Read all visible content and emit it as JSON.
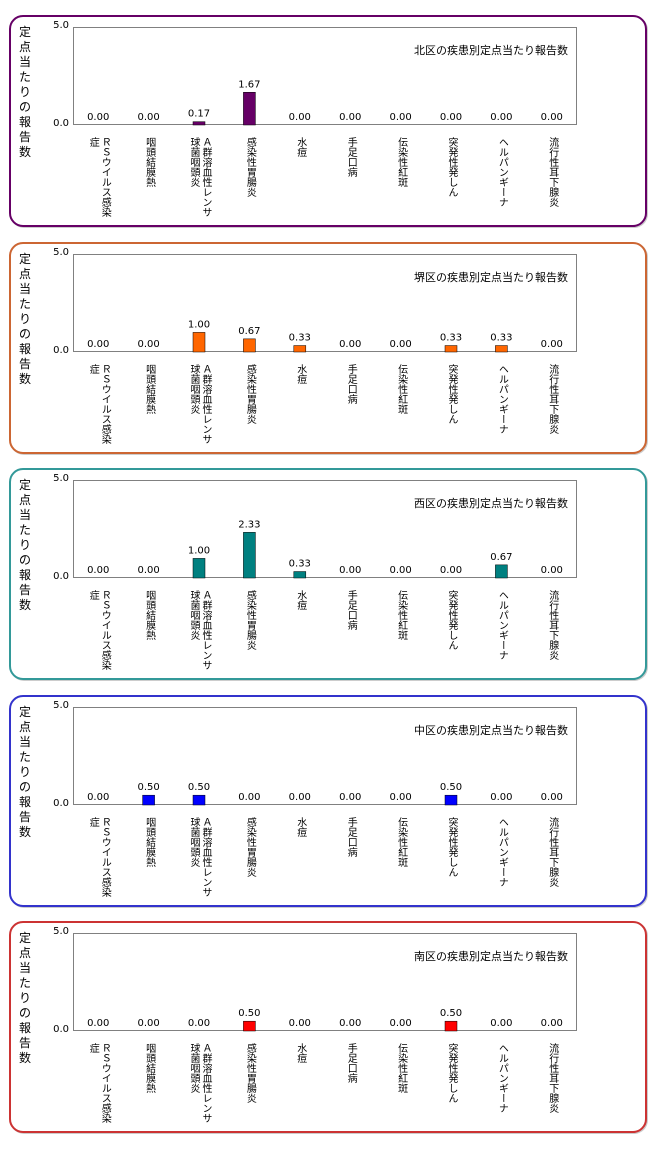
{
  "categories": [
    [
      "ＲＳウイルス感染",
      "症"
    ],
    [
      "咽頭結膜熱"
    ],
    [
      "Ａ群溶血性レンサ",
      "球菌咽頭炎"
    ],
    [
      "感染性胃腸炎"
    ],
    [
      "水痘"
    ],
    [
      "手足口病"
    ],
    [
      "伝染性紅斑"
    ],
    [
      "突発性発しん"
    ],
    [
      "ヘルパンギーナ"
    ],
    [
      "流行性耳下腺炎"
    ]
  ],
  "ylabel": "定点当たりの報告数",
  "yticks": [
    "5.0",
    "0.0"
  ],
  "chart_data": [
    {
      "type": "bar",
      "title": "北区の疾患別定点当たり報告数",
      "ylim": [
        0,
        5
      ],
      "color": "#660066",
      "values": [
        0,
        0,
        0.17,
        1.67,
        0,
        0,
        0,
        0,
        0,
        0
      ],
      "labels": [
        "0.00",
        "0.00",
        "0.17",
        "1.67",
        "0.00",
        "0.00",
        "0.00",
        "0.00",
        "0.00",
        "0.00"
      ],
      "border_color": "#660066"
    },
    {
      "type": "bar",
      "title": "堺区の疾患別定点当たり報告数",
      "ylim": [
        0,
        5
      ],
      "color": "#ff6600",
      "values": [
        0,
        0,
        1.0,
        0.67,
        0.33,
        0,
        0,
        0.33,
        0.33,
        0
      ],
      "labels": [
        "0.00",
        "0.00",
        "1.00",
        "0.67",
        "0.33",
        "0.00",
        "0.00",
        "0.33",
        "0.33",
        "0.00"
      ],
      "border_color": "#cc6633"
    },
    {
      "type": "bar",
      "title": "西区の疾患別定点当たり報告数",
      "ylim": [
        0,
        5
      ],
      "color": "#008080",
      "values": [
        0,
        0,
        1.0,
        2.33,
        0.33,
        0,
        0,
        0,
        0.67,
        0
      ],
      "labels": [
        "0.00",
        "0.00",
        "1.00",
        "2.33",
        "0.33",
        "0.00",
        "0.00",
        "0.00",
        "0.67",
        "0.00"
      ],
      "border_color": "#339999"
    },
    {
      "type": "bar",
      "title": "中区の疾患別定点当たり報告数",
      "ylim": [
        0,
        5
      ],
      "color": "#0000ff",
      "values": [
        0,
        0.5,
        0.5,
        0,
        0,
        0,
        0,
        0.5,
        0,
        0
      ],
      "labels": [
        "0.00",
        "0.50",
        "0.50",
        "0.00",
        "0.00",
        "0.00",
        "0.00",
        "0.50",
        "0.00",
        "0.00"
      ],
      "border_color": "#3333cc"
    },
    {
      "type": "bar",
      "title": "南区の疾患別定点当たり報告数",
      "ylim": [
        0,
        5
      ],
      "color": "#ff0000",
      "values": [
        0,
        0,
        0,
        0.5,
        0,
        0,
        0,
        0.5,
        0,
        0
      ],
      "labels": [
        "0.00",
        "0.00",
        "0.00",
        "0.50",
        "0.00",
        "0.00",
        "0.00",
        "0.50",
        "0.00",
        "0.00"
      ],
      "border_color": "#cc3333"
    }
  ]
}
